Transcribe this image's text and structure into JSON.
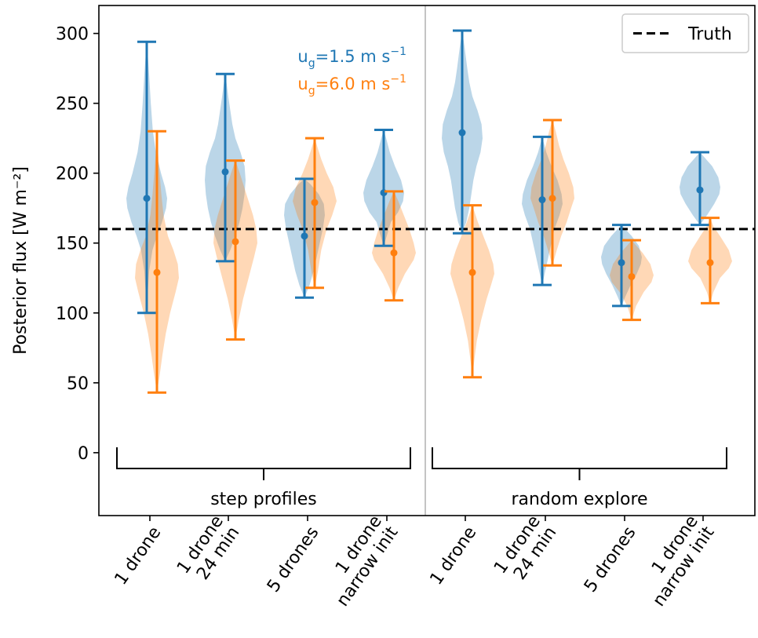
{
  "chart_data": {
    "type": "violin",
    "ylabel": "Posterior flux [W m⁻²]",
    "ylim": [
      -45,
      320
    ],
    "yticks": [
      0,
      50,
      100,
      150,
      200,
      250,
      300
    ],
    "grid": false,
    "categories": [
      [
        "1 drone"
      ],
      [
        "1 drone",
        "24 min"
      ],
      [
        "5 drones"
      ],
      [
        "1 drone",
        "narrow init"
      ],
      [
        "1 drone"
      ],
      [
        "1 drone",
        "24 min"
      ],
      [
        "5 drones"
      ],
      [
        "1 drone",
        "narrow init"
      ]
    ],
    "groups": [
      {
        "label": "step profiles",
        "from": 0,
        "to": 3
      },
      {
        "label": "random explore",
        "from": 4,
        "to": 7
      }
    ],
    "truth": {
      "label": "Truth",
      "value": 160
    },
    "legend_position": "top-right",
    "series_annotations": [
      {
        "base": "u",
        "sub": "g",
        "mid": "=1.5 m s",
        "sup": "−1"
      },
      {
        "base": "u",
        "sub": "g",
        "mid": "=6.0 m s",
        "sup": "−1"
      }
    ],
    "series": [
      {
        "color": "#1f77b4",
        "median": [
          182,
          201,
          155,
          186,
          229,
          181,
          136,
          188
        ],
        "min": [
          100,
          137,
          111,
          148,
          157,
          120,
          105,
          163
        ],
        "max": [
          294,
          271,
          196,
          231,
          302,
          226,
          163,
          215
        ],
        "density": [
          [
            [
              100,
              0
            ],
            [
              115,
              0.05
            ],
            [
              130,
              0.12
            ],
            [
              145,
              0.28
            ],
            [
              155,
              0.5
            ],
            [
              165,
              0.75
            ],
            [
              175,
              0.95
            ],
            [
              182,
              1.0
            ],
            [
              190,
              0.9
            ],
            [
              200,
              0.7
            ],
            [
              215,
              0.45
            ],
            [
              230,
              0.3
            ],
            [
              250,
              0.2
            ],
            [
              270,
              0.12
            ],
            [
              285,
              0.05
            ],
            [
              294,
              0
            ]
          ],
          [
            [
              137,
              0
            ],
            [
              145,
              0.25
            ],
            [
              155,
              0.5
            ],
            [
              165,
              0.7
            ],
            [
              175,
              0.85
            ],
            [
              185,
              0.95
            ],
            [
              195,
              1.0
            ],
            [
              205,
              0.95
            ],
            [
              215,
              0.75
            ],
            [
              225,
              0.5
            ],
            [
              235,
              0.35
            ],
            [
              245,
              0.25
            ],
            [
              255,
              0.15
            ],
            [
              265,
              0.06
            ],
            [
              271,
              0
            ]
          ],
          [
            [
              111,
              0
            ],
            [
              120,
              0.25
            ],
            [
              130,
              0.45
            ],
            [
              140,
              0.6
            ],
            [
              150,
              0.75
            ],
            [
              160,
              0.9
            ],
            [
              170,
              1.0
            ],
            [
              178,
              0.95
            ],
            [
              185,
              0.7
            ],
            [
              192,
              0.3
            ],
            [
              196,
              0
            ]
          ],
          [
            [
              148,
              0
            ],
            [
              155,
              0.15
            ],
            [
              165,
              0.35
            ],
            [
              172,
              0.7
            ],
            [
              180,
              0.95
            ],
            [
              186,
              1.0
            ],
            [
              195,
              0.85
            ],
            [
              205,
              0.55
            ],
            [
              215,
              0.3
            ],
            [
              225,
              0.12
            ],
            [
              231,
              0
            ]
          ],
          [
            [
              157,
              0
            ],
            [
              165,
              0.2
            ],
            [
              175,
              0.35
            ],
            [
              185,
              0.45
            ],
            [
              195,
              0.55
            ],
            [
              205,
              0.7
            ],
            [
              215,
              0.9
            ],
            [
              225,
              1.0
            ],
            [
              235,
              0.95
            ],
            [
              245,
              0.75
            ],
            [
              255,
              0.5
            ],
            [
              265,
              0.35
            ],
            [
              275,
              0.25
            ],
            [
              290,
              0.12
            ],
            [
              302,
              0
            ]
          ],
          [
            [
              120,
              0
            ],
            [
              130,
              0.15
            ],
            [
              140,
              0.3
            ],
            [
              150,
              0.45
            ],
            [
              160,
              0.6
            ],
            [
              170,
              0.85
            ],
            [
              178,
              1.0
            ],
            [
              185,
              0.95
            ],
            [
              195,
              0.75
            ],
            [
              205,
              0.45
            ],
            [
              215,
              0.2
            ],
            [
              226,
              0
            ]
          ],
          [
            [
              105,
              0
            ],
            [
              112,
              0.2
            ],
            [
              120,
              0.45
            ],
            [
              128,
              0.75
            ],
            [
              135,
              0.95
            ],
            [
              140,
              1.0
            ],
            [
              148,
              0.85
            ],
            [
              155,
              0.5
            ],
            [
              163,
              0
            ]
          ],
          [
            [
              163,
              0
            ],
            [
              170,
              0.35
            ],
            [
              178,
              0.7
            ],
            [
              185,
              0.95
            ],
            [
              190,
              1.0
            ],
            [
              197,
              0.9
            ],
            [
              205,
              0.6
            ],
            [
              210,
              0.3
            ],
            [
              215,
              0
            ]
          ]
        ]
      },
      {
        "color": "#ff7f0e",
        "median": [
          129,
          151,
          179,
          143,
          129,
          182,
          126,
          136
        ],
        "min": [
          43,
          81,
          118,
          109,
          54,
          134,
          95,
          107
        ],
        "max": [
          230,
          209,
          225,
          187,
          177,
          238,
          152,
          168
        ],
        "density": [
          [
            [
              43,
              0
            ],
            [
              55,
              0.12
            ],
            [
              70,
              0.25
            ],
            [
              85,
              0.4
            ],
            [
              100,
              0.6
            ],
            [
              115,
              0.85
            ],
            [
              125,
              1.0
            ],
            [
              135,
              0.95
            ],
            [
              145,
              0.75
            ],
            [
              155,
              0.5
            ],
            [
              170,
              0.3
            ],
            [
              185,
              0.2
            ],
            [
              200,
              0.12
            ],
            [
              215,
              0.05
            ],
            [
              230,
              0
            ]
          ],
          [
            [
              81,
              0
            ],
            [
              95,
              0.15
            ],
            [
              110,
              0.35
            ],
            [
              125,
              0.6
            ],
            [
              140,
              0.85
            ],
            [
              150,
              1.0
            ],
            [
              160,
              0.95
            ],
            [
              170,
              0.8
            ],
            [
              180,
              0.6
            ],
            [
              190,
              0.4
            ],
            [
              200,
              0.2
            ],
            [
              209,
              0
            ]
          ],
          [
            [
              118,
              0
            ],
            [
              130,
              0.15
            ],
            [
              145,
              0.3
            ],
            [
              160,
              0.55
            ],
            [
              170,
              0.8
            ],
            [
              180,
              1.0
            ],
            [
              190,
              0.85
            ],
            [
              200,
              0.55
            ],
            [
              210,
              0.3
            ],
            [
              220,
              0.1
            ],
            [
              225,
              0
            ]
          ],
          [
            [
              109,
              0
            ],
            [
              118,
              0.2
            ],
            [
              128,
              0.5
            ],
            [
              138,
              0.9
            ],
            [
              143,
              1.0
            ],
            [
              150,
              0.9
            ],
            [
              160,
              0.7
            ],
            [
              170,
              0.45
            ],
            [
              180,
              0.2
            ],
            [
              187,
              0
            ]
          ],
          [
            [
              54,
              0
            ],
            [
              65,
              0.08
            ],
            [
              80,
              0.2
            ],
            [
              95,
              0.4
            ],
            [
              110,
              0.65
            ],
            [
              120,
              0.85
            ],
            [
              128,
              1.0
            ],
            [
              135,
              0.95
            ],
            [
              145,
              0.75
            ],
            [
              155,
              0.5
            ],
            [
              165,
              0.25
            ],
            [
              177,
              0
            ]
          ],
          [
            [
              134,
              0
            ],
            [
              145,
              0.2
            ],
            [
              155,
              0.4
            ],
            [
              165,
              0.65
            ],
            [
              175,
              0.85
            ],
            [
              182,
              1.0
            ],
            [
              190,
              0.95
            ],
            [
              200,
              0.75
            ],
            [
              210,
              0.5
            ],
            [
              220,
              0.3
            ],
            [
              230,
              0.15
            ],
            [
              238,
              0
            ]
          ],
          [
            [
              95,
              0
            ],
            [
              105,
              0.2
            ],
            [
              115,
              0.55
            ],
            [
              122,
              0.9
            ],
            [
              127,
              1.0
            ],
            [
              135,
              0.85
            ],
            [
              143,
              0.5
            ],
            [
              152,
              0
            ]
          ],
          [
            [
              107,
              0
            ],
            [
              115,
              0.15
            ],
            [
              125,
              0.45
            ],
            [
              132,
              0.85
            ],
            [
              137,
              1.0
            ],
            [
              145,
              0.85
            ],
            [
              155,
              0.45
            ],
            [
              162,
              0.15
            ],
            [
              168,
              0
            ]
          ]
        ]
      }
    ]
  }
}
